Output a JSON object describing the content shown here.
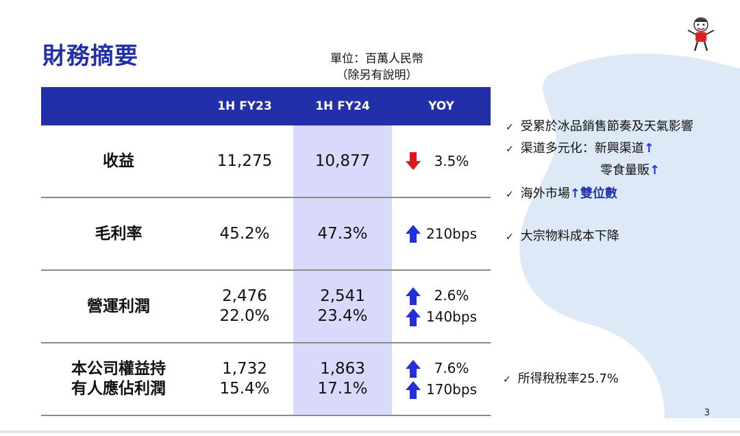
{
  "title": "財務摘要",
  "unit_line1": "單位：百萬人民幣",
  "unit_line2": "（除另有說明）",
  "table": {
    "headers": [
      "",
      "1H FY23",
      "1H FY24",
      "YOY"
    ],
    "rows": [
      {
        "label": "收益",
        "fy23": "11,275",
        "fy24": "10,877",
        "yoy": [
          {
            "dir": "down",
            "value": "3.5%"
          }
        ]
      },
      {
        "label": "毛利率",
        "fy23": "45.2%",
        "fy24": "47.3%",
        "yoy": [
          {
            "dir": "up",
            "value": "210bps"
          }
        ]
      },
      {
        "label": "營運利潤",
        "fy23_l1": "2,476",
        "fy23_l2": "22.0%",
        "fy24_l1": "2,541",
        "fy24_l2": "23.4%",
        "yoy": [
          {
            "dir": "up",
            "value": "2.6%"
          },
          {
            "dir": "up",
            "value": "140bps"
          }
        ]
      },
      {
        "label_l1": "本公司權益持",
        "label_l2": "有人應佔利潤",
        "fy23_l1": "1,732",
        "fy23_l2": "15.4%",
        "fy24_l1": "1,863",
        "fy24_l2": "17.1%",
        "yoy": [
          {
            "dir": "up",
            "value": "7.6%"
          },
          {
            "dir": "up",
            "value": "170bps"
          }
        ]
      }
    ]
  },
  "notes": {
    "n1": "受累於冰品銷售節奏及天氣影響",
    "n2a": "渠道多元化：新興渠道",
    "n2b": "零食量販",
    "n3a": "海外市場",
    "n3b": "雙位數",
    "n4": "大宗物料成本下降",
    "n5": "所得稅稅率25.7%",
    "check": "✓",
    "arrow_up": "↑"
  },
  "page_number": "3",
  "colors": {
    "header_blue": "#2130a8",
    "highlight": "#d9d9fb",
    "arrow_blue": "#2130d8",
    "arrow_red": "#e0141e",
    "blob": "#dde9f7"
  }
}
